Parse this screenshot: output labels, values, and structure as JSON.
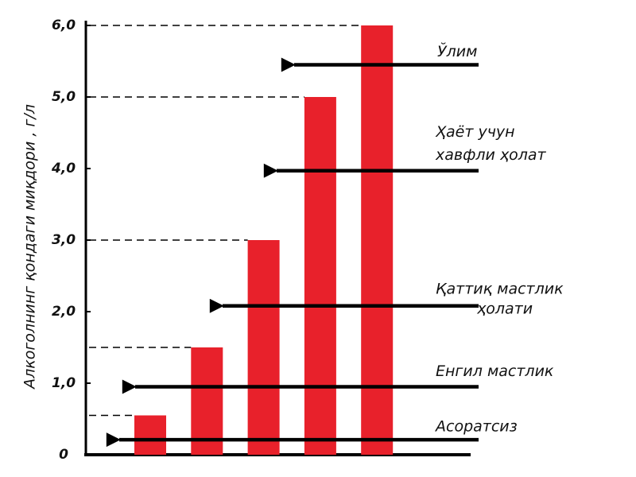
{
  "chart_data": {
    "type": "bar",
    "y_label": "Алкоголнинг қондаги миқдори , г/л",
    "categories": [
      null,
      null,
      null,
      null,
      null
    ],
    "values": [
      0.55,
      1.5,
      3.0,
      5.0,
      6.0
    ],
    "color": "#e8212b",
    "ylim": [
      0,
      6
    ],
    "yticks": [
      0,
      {
        "value": 1,
        "label": "1,0"
      },
      {
        "value": 2,
        "label": "2,0"
      },
      {
        "value": 3,
        "label": "3,0"
      },
      {
        "value": 4,
        "label": "4,0"
      },
      {
        "value": 5,
        "label": "5,0"
      },
      {
        "value": 6,
        "label": "6,0"
      }
    ],
    "annotations": [
      {
        "lines": [
          "Ўлим"
        ],
        "y": 5.45
      },
      {
        "lines": [
          "Ҳаёт   учун",
          "хавфли ҳолат"
        ],
        "y": 3.97
      },
      {
        "lines": [
          "Қаттиқ мастлик",
          "ҳолати"
        ],
        "y": 2.08
      },
      {
        "lines": [
          "Енгил мастлик"
        ],
        "y": 0.95
      },
      {
        "lines": [
          "Асоратсиз"
        ],
        "y": 0.21
      }
    ]
  }
}
